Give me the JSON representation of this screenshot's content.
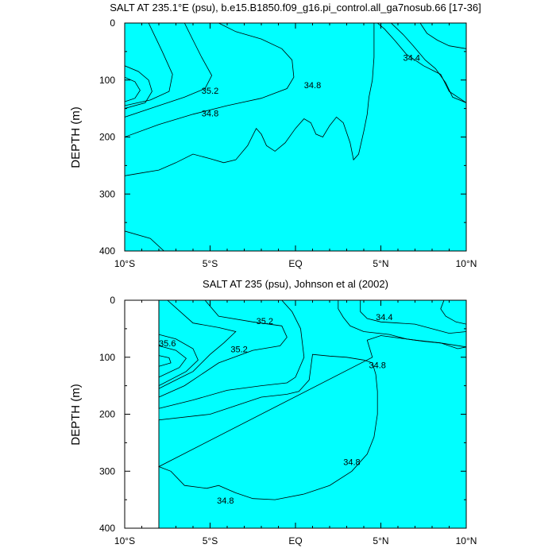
{
  "colors": {
    "c_lt_34_4": "#00c8f5",
    "c_34_4": "#33e6ff",
    "c_34_6": "#00ffff",
    "c_34_8": "#00f0c8",
    "c_35_0": "#20ff9c",
    "c_35_2": "#00ff40",
    "c_35_4": "#00e830",
    "c_35_6": "#9cff1a",
    "c_35_8": "#ffff40",
    "c_36_0": "#ffd838",
    "nodata": "#ffffff",
    "frame": "#000000"
  },
  "chart_data": [
    {
      "type": "contour",
      "title": "SALT AT 235.1°E (psu), b.e15.B1850.f09_g16.pi_control.all_ga7nosub.66 [17-36]",
      "xlabel": "",
      "ylabel": "DEPTH (m)",
      "x_ticks": [
        "10°S",
        "5°S",
        "EQ",
        "5°N",
        "10°N"
      ],
      "x_tick_values": [
        -10,
        -5,
        0,
        5,
        10
      ],
      "xlim": [
        -10,
        10
      ],
      "y_ticks": [
        "0",
        "100",
        "200",
        "300",
        "400"
      ],
      "y_tick_values": [
        0,
        100,
        200,
        300,
        400
      ],
      "ylim": [
        0,
        400
      ],
      "y_reversed": true,
      "contour_interval": 0.2,
      "contour_labels": [
        {
          "text": "35.2",
          "x": -5.0,
          "y": 120
        },
        {
          "text": "34.8",
          "x": -5.0,
          "y": 160
        },
        {
          "text": "34.8",
          "x": 1.0,
          "y": 110
        },
        {
          "text": "34.4",
          "x": 6.8,
          "y": 62
        }
      ],
      "regions": [
        {
          "level": "c_34_8",
          "points": [
            [
              -10,
              0
            ],
            [
              4.6,
              0
            ],
            [
              4.6,
              60
            ],
            [
              4.5,
              100
            ],
            [
              4.3,
              130
            ],
            [
              4.2,
              160
            ],
            [
              4.0,
              190
            ],
            [
              3.7,
              230
            ],
            [
              3.4,
              240
            ],
            [
              3.2,
              210
            ],
            [
              2.8,
              175
            ],
            [
              2.4,
              165
            ],
            [
              2.0,
              180
            ],
            [
              1.6,
              200
            ],
            [
              1.2,
              195
            ],
            [
              0.9,
              175
            ],
            [
              0.5,
              168
            ],
            [
              0.0,
              185
            ],
            [
              -0.6,
              210
            ],
            [
              -1.2,
              225
            ],
            [
              -1.7,
              215
            ],
            [
              -2.0,
              195
            ],
            [
              -2.3,
              185
            ],
            [
              -2.8,
              215
            ],
            [
              -3.5,
              240
            ],
            [
              -4.2,
              245
            ],
            [
              -5.0,
              238
            ],
            [
              -6.0,
              230
            ],
            [
              -7.0,
              245
            ],
            [
              -8.0,
              258
            ],
            [
              -9.0,
              263
            ],
            [
              -10,
              268
            ]
          ]
        },
        {
          "level": "c_35_0",
          "points": [
            [
              -10,
              0
            ],
            [
              -4.5,
              0
            ],
            [
              -3.5,
              15
            ],
            [
              -2.0,
              28
            ],
            [
              -0.8,
              45
            ],
            [
              -0.2,
              65
            ],
            [
              -0.1,
              95
            ],
            [
              -0.5,
              115
            ],
            [
              -2.0,
              132
            ],
            [
              -4.0,
              145
            ],
            [
              -6.0,
              160
            ],
            [
              -8.0,
              178
            ],
            [
              -10,
              200
            ]
          ]
        },
        {
          "level": "c_35_2",
          "points": [
            [
              -10,
              0
            ],
            [
              -6.5,
              0
            ],
            [
              -6.0,
              30
            ],
            [
              -5.5,
              60
            ],
            [
              -4.9,
              92
            ],
            [
              -5.3,
              115
            ],
            [
              -6.5,
              130
            ],
            [
              -8.0,
              145
            ],
            [
              -10,
              165
            ]
          ]
        },
        {
          "level": "c_35_6",
          "points": [
            [
              -10,
              0
            ],
            [
              -8.6,
              0
            ],
            [
              -8.2,
              25
            ],
            [
              -7.8,
              50
            ],
            [
              -7.2,
              90
            ],
            [
              -7.4,
              120
            ],
            [
              -8.5,
              135
            ],
            [
              -10,
              145
            ]
          ]
        },
        {
          "level": "c_35_8",
          "points": [
            [
              -10,
              75
            ],
            [
              -9.2,
              85
            ],
            [
              -8.6,
              100
            ],
            [
              -8.4,
              120
            ],
            [
              -8.8,
              140
            ],
            [
              -10,
              150
            ]
          ]
        },
        {
          "level": "c_36_0",
          "points": [
            [
              -10,
              95
            ],
            [
              -9.4,
              103
            ],
            [
              -9.1,
              118
            ],
            [
              -9.4,
              132
            ],
            [
              -10,
              138
            ]
          ]
        },
        {
          "level": "c_34_6",
          "points": [
            [
              4.8,
              0
            ],
            [
              10,
              0
            ],
            [
              10,
              140
            ],
            [
              9.0,
              120
            ],
            [
              8.5,
              90
            ],
            [
              7.5,
              75
            ],
            [
              6.5,
              55
            ],
            [
              5.8,
              30
            ],
            [
              5.2,
              10
            ]
          ]
        },
        {
          "level": "c_34_4",
          "points": [
            [
              5.6,
              0
            ],
            [
              10,
              0
            ],
            [
              10,
              140
            ],
            [
              9.2,
              130
            ],
            [
              8.8,
              105
            ],
            [
              8.2,
              80
            ],
            [
              7.6,
              65
            ],
            [
              6.9,
              40
            ],
            [
              6.3,
              20
            ]
          ]
        },
        {
          "level": "c_lt_34_4",
          "points": [
            [
              7.3,
              0
            ],
            [
              10,
              0
            ],
            [
              10,
              45
            ],
            [
              9.0,
              40
            ],
            [
              8.3,
              30
            ],
            [
              7.7,
              18
            ]
          ]
        },
        {
          "level": "c_34_8",
          "points": [
            [
              -10,
              365
            ],
            [
              -8.5,
              378
            ],
            [
              -7.7,
              400
            ],
            [
              -10,
              400
            ]
          ]
        }
      ]
    },
    {
      "type": "contour",
      "title": "SALT AT 235 (psu), Johnson et al (2002)",
      "xlabel": "",
      "ylabel": "DEPTH (m)",
      "x_ticks": [
        "10°S",
        "5°S",
        "EQ",
        "5°N",
        "10°N"
      ],
      "x_tick_values": [
        -10,
        -5,
        0,
        5,
        10
      ],
      "xlim": [
        -10,
        10
      ],
      "y_ticks": [
        "0",
        "100",
        "200",
        "300",
        "400"
      ],
      "y_tick_values": [
        0,
        100,
        200,
        300,
        400
      ],
      "ylim": [
        0,
        400
      ],
      "y_reversed": true,
      "data_start_x": -8,
      "contour_interval": 0.2,
      "contour_labels": [
        {
          "text": "35.6",
          "x": -7.5,
          "y": 77
        },
        {
          "text": "35.2",
          "x": -3.3,
          "y": 87
        },
        {
          "text": "35.2",
          "x": -1.8,
          "y": 38
        },
        {
          "text": "34.4",
          "x": 5.2,
          "y": 31
        },
        {
          "text": "34.8",
          "x": 4.8,
          "y": 115
        },
        {
          "text": "34.8",
          "x": 3.3,
          "y": 285
        },
        {
          "text": "34.8",
          "x": -4.1,
          "y": 353
        }
      ],
      "regions": [
        {
          "level": "c_34_8",
          "points": [
            [
              -8,
              0
            ],
            [
              10,
              0
            ],
            [
              10,
              400
            ],
            [
              -8,
              400
            ]
          ]
        },
        {
          "level": "c_34_6",
          "points": [
            [
              2.5,
              0
            ],
            [
              10,
              0
            ],
            [
              10,
              82
            ],
            [
              9.5,
              85
            ],
            [
              8.5,
              75
            ],
            [
              7.5,
              72
            ],
            [
              6.5,
              68
            ],
            [
              5.5,
              60
            ],
            [
              4.0,
              55
            ],
            [
              3.2,
              45
            ],
            [
              2.8,
              30
            ],
            [
              2.5,
              15
            ]
          ]
        },
        {
          "level": "c_34_4",
          "points": [
            [
              3.8,
              0
            ],
            [
              10,
              0
            ],
            [
              10,
              55
            ],
            [
              9.0,
              58
            ],
            [
              8.0,
              50
            ],
            [
              7.0,
              42
            ],
            [
              6.0,
              40
            ],
            [
              5.0,
              38
            ],
            [
              4.2,
              32
            ],
            [
              3.8,
              20
            ]
          ]
        },
        {
          "level": "c_lt_34_4",
          "points": [
            [
              8.7,
              0
            ],
            [
              10,
              0
            ],
            [
              10,
              42
            ],
            [
              9.4,
              38
            ],
            [
              8.8,
              28
            ],
            [
              8.5,
              15
            ]
          ]
        },
        {
          "level": "c_35_0",
          "points": [
            [
              -8,
              0
            ],
            [
              -0.8,
              0
            ],
            [
              -0.2,
              20
            ],
            [
              0.3,
              50
            ],
            [
              0.5,
              100
            ],
            [
              0.0,
              135
            ],
            [
              -0.5,
              145
            ],
            [
              -2.0,
              150
            ],
            [
              -4.0,
              158
            ],
            [
              -6.0,
              175
            ],
            [
              -8,
              190
            ]
          ]
        },
        {
          "level": "c_35_2",
          "points": [
            [
              -8,
              0
            ],
            [
              -5.3,
              0
            ],
            [
              -4.5,
              28
            ],
            [
              -2.5,
              38
            ],
            [
              -0.8,
              45
            ],
            [
              -0.5,
              65
            ],
            [
              -0.9,
              80
            ],
            [
              -2.5,
              88
            ],
            [
              -4.5,
              110
            ],
            [
              -6.5,
              150
            ],
            [
              -8,
              170
            ]
          ]
        },
        {
          "level": "c_35_4",
          "points": [
            [
              -8,
              0
            ],
            [
              -7.5,
              0
            ],
            [
              -6.0,
              40
            ],
            [
              -4.5,
              48
            ],
            [
              -3.5,
              55
            ],
            [
              -4.2,
              75
            ],
            [
              -5.0,
              95
            ],
            [
              -6.0,
              125
            ],
            [
              -7.0,
              140
            ],
            [
              -8,
              155
            ]
          ]
        },
        {
          "level": "c_35_6",
          "points": [
            [
              -8,
              60
            ],
            [
              -7.0,
              68
            ],
            [
              -6.0,
              85
            ],
            [
              -5.7,
              105
            ],
            [
              -6.4,
              125
            ],
            [
              -8,
              150
            ]
          ]
        },
        {
          "level": "c_35_8",
          "points": [
            [
              -8,
              80
            ],
            [
              -7.0,
              88
            ],
            [
              -6.4,
              102
            ],
            [
              -6.8,
              118
            ],
            [
              -8,
              135
            ]
          ]
        },
        {
          "level": "c_36_0",
          "points": [
            [
              -8,
              97
            ],
            [
              -7.4,
              101
            ],
            [
              -7.3,
              110
            ],
            [
              -8,
              116
            ]
          ]
        },
        {
          "level": "c_34_6",
          "points": [
            [
              -8,
              292
            ],
            [
              -7.3,
              300
            ],
            [
              -6.5,
              325
            ],
            [
              -5.2,
              330
            ],
            [
              -4.5,
              325
            ],
            [
              -3.5,
              338
            ],
            [
              -2.5,
              348
            ],
            [
              -1.2,
              350
            ],
            [
              0.5,
              340
            ],
            [
              2.0,
              325
            ],
            [
              3.3,
              300
            ],
            [
              4.2,
              270
            ],
            [
              4.6,
              240
            ],
            [
              4.8,
              200
            ],
            [
              4.8,
              160
            ],
            [
              4.7,
              130
            ],
            [
              4.5,
              110
            ],
            [
              4.0,
              105
            ],
            [
              3.0,
              100
            ],
            [
              2.0,
              98
            ],
            [
              1.0,
              95
            ],
            [
              0.8,
              140
            ],
            [
              0.2,
              160
            ],
            [
              -0.5,
              165
            ],
            [
              -2.0,
              170
            ],
            [
              -5.0,
              200
            ],
            [
              -8,
              210
            ],
            [
              -8,
              400
            ],
            [
              10,
              400
            ],
            [
              10,
              82
            ],
            [
              8.5,
              75
            ],
            [
              7.0,
              70
            ],
            [
              5.0,
              62
            ],
            [
              4.2,
              70
            ],
            [
              4.5,
              100
            ]
          ]
        }
      ]
    }
  ]
}
